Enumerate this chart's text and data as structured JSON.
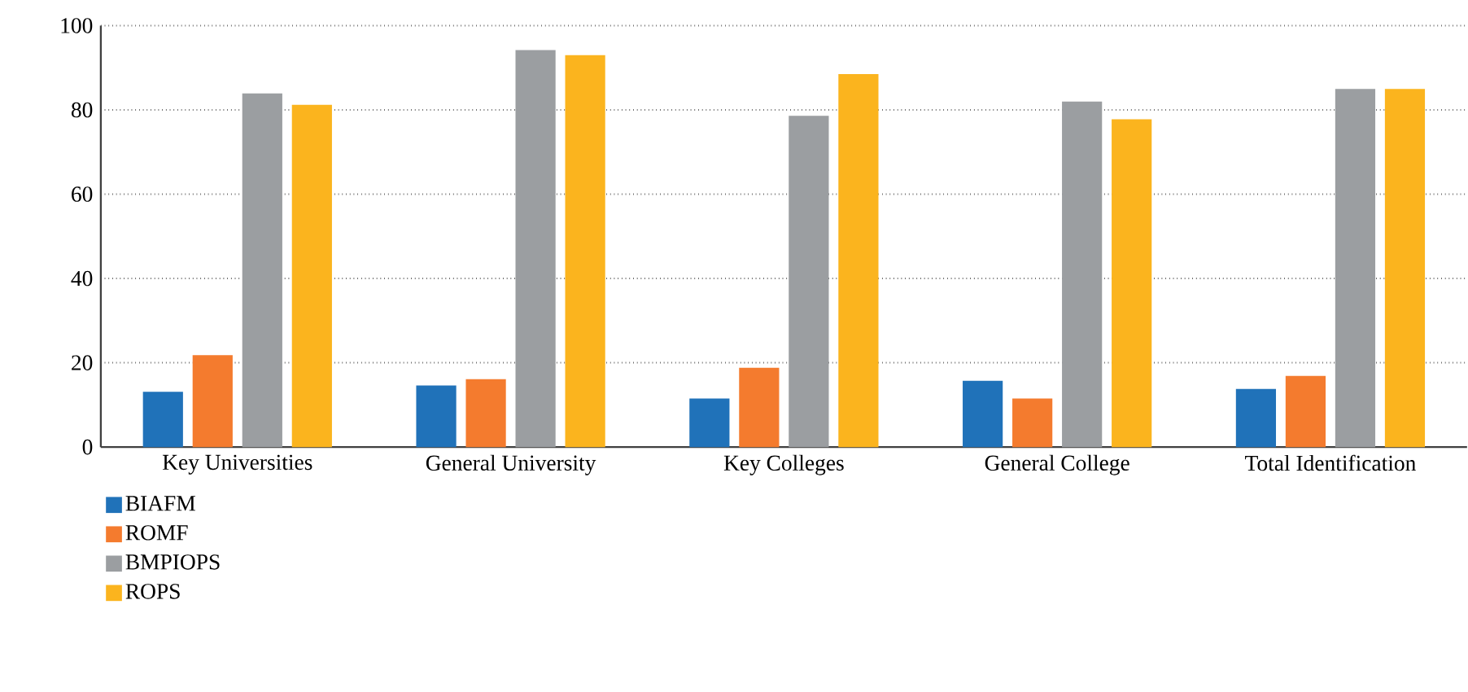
{
  "chart_data": {
    "type": "bar",
    "categories": [
      "Key Universities",
      "General University",
      "Key Colleges",
      "General College",
      "Total Identification"
    ],
    "series": [
      {
        "name": "BIAFM",
        "color": "#2072b9",
        "values": [
          13.1,
          14.6,
          11.5,
          15.7,
          13.8
        ]
      },
      {
        "name": "ROMF",
        "color": "#f47b2e",
        "values": [
          21.8,
          16.1,
          18.8,
          11.5,
          16.9
        ]
      },
      {
        "name": "BMPIOPS",
        "color": "#9b9ea1",
        "values": [
          83.9,
          94.2,
          78.6,
          82.0,
          85.0
        ]
      },
      {
        "name": "ROPS",
        "color": "#fbb41e",
        "values": [
          81.2,
          93.0,
          88.5,
          77.8,
          85.0
        ]
      }
    ],
    "ylim": [
      0,
      100
    ],
    "yticks": [
      0,
      20,
      40,
      60,
      80,
      100
    ],
    "grid": "y",
    "legend": "bottom left"
  }
}
